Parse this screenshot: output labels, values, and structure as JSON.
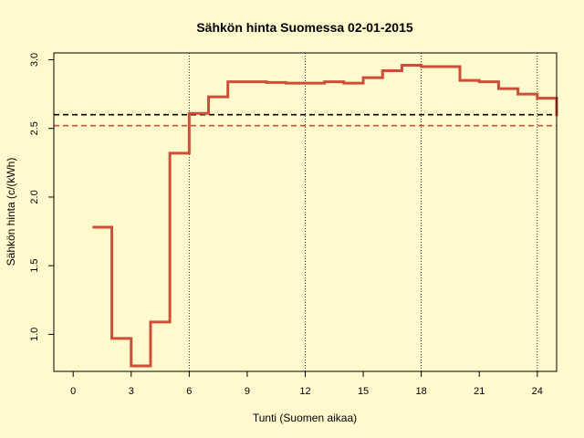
{
  "chart_data": {
    "type": "line",
    "step": true,
    "title": "Sähkön hinta Suomessa 02-01-2015",
    "xlabel": "Tunti (Suomen aikaa)",
    "ylabel": "Sähkön hinta (c/(kWh)",
    "xlim": [
      -1,
      25
    ],
    "ylim": [
      0.73,
      3.05
    ],
    "x_ticks": [
      0,
      3,
      6,
      9,
      12,
      15,
      18,
      21,
      24
    ],
    "x_tick_labels": [
      "0",
      "3",
      "6",
      "9",
      "12",
      "15",
      "18",
      "21",
      "24"
    ],
    "y_ticks": [
      1.0,
      1.5,
      2.0,
      2.5,
      3.0
    ],
    "y_tick_labels": [
      "1.0",
      "1.5",
      "2.0",
      "2.5",
      "3.0"
    ],
    "vertical_gridlines": [
      6,
      12,
      18,
      24
    ],
    "series": [
      {
        "color": "#cd4f39",
        "x": [
          1,
          2,
          3,
          4,
          5,
          6,
          7,
          8,
          9,
          10,
          11,
          12,
          13,
          14,
          15,
          16,
          17,
          18,
          19,
          20,
          21,
          22,
          23,
          24,
          25
        ],
        "y": [
          1.78,
          0.97,
          0.77,
          1.09,
          2.32,
          2.61,
          2.73,
          2.84,
          2.84,
          2.835,
          2.83,
          2.83,
          2.84,
          2.83,
          2.87,
          2.92,
          2.96,
          2.95,
          2.95,
          2.85,
          2.84,
          2.79,
          2.75,
          2.72,
          2.59
        ]
      }
    ],
    "reference_lines": [
      {
        "y": 2.6,
        "color": "#000000",
        "style": "dashed"
      },
      {
        "y": 2.52,
        "color": "#cd4f39",
        "style": "dashed"
      }
    ]
  }
}
